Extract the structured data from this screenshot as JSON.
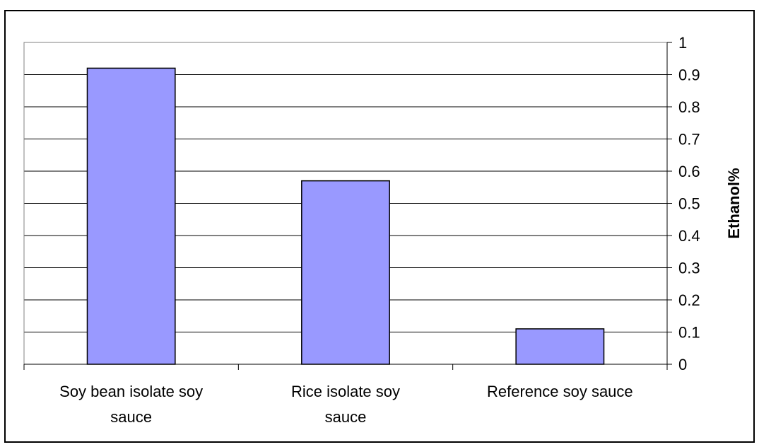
{
  "chart_data": {
    "type": "bar",
    "categories": [
      [
        "Soy bean isolate soy",
        "sauce"
      ],
      [
        "Rice isolate soy",
        "sauce"
      ],
      [
        "Reference soy sauce"
      ]
    ],
    "values": [
      0.92,
      0.57,
      0.11
    ],
    "ylabel": "Ethanol%",
    "ylim": [
      0,
      1
    ],
    "yticks": [
      "0",
      "0.1",
      "0.2",
      "0.3",
      "0.4",
      "0.5",
      "0.6",
      "0.7",
      "0.8",
      "0.9",
      "1"
    ],
    "grid": true,
    "y_axis_side": "right",
    "bar_color": "#9999ff",
    "bar_edge_color": "#000000",
    "plot_border_color": "#808080"
  }
}
